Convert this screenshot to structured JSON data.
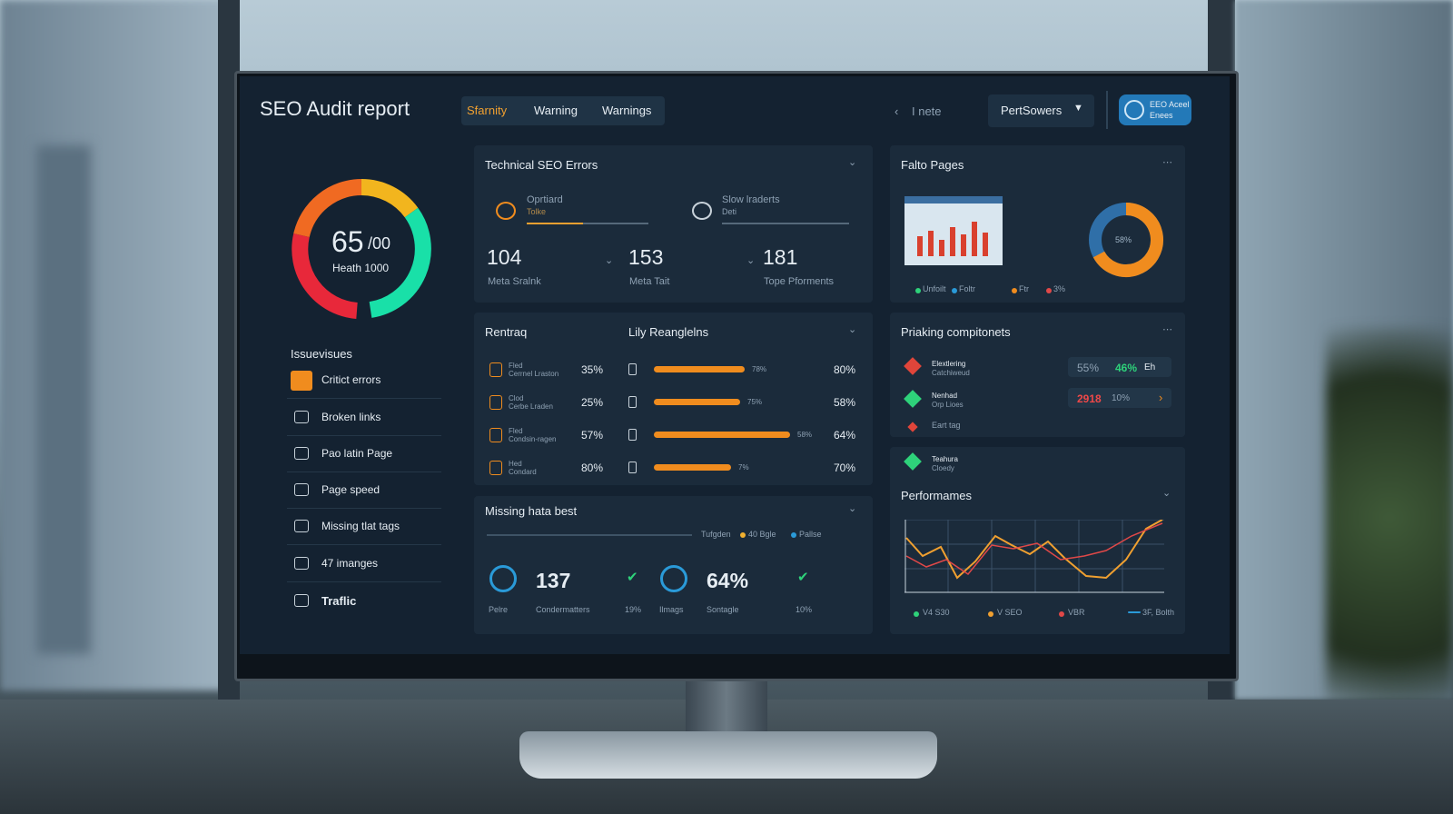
{
  "header": {
    "title": "SEO Audit report",
    "tabs": [
      "Sfarnity",
      "Warning",
      "Warnings"
    ],
    "search": "I nete",
    "dropdown": "PertSowers",
    "badge": [
      "EEO Aceel",
      "Enees"
    ]
  },
  "gauge": {
    "value": "65",
    "suffix": "/00",
    "label": "Heath 1000"
  },
  "sidebar": {
    "title": "Issuevisues",
    "items": [
      "Critict errors",
      "Broken links",
      "Pao latin Page",
      "Page speed",
      "Missing tlat tags",
      "47 imanges",
      "Traflic"
    ]
  },
  "technical": {
    "title": "Technical SEO Errors",
    "tabs": [
      {
        "label": "Oprtiard",
        "sub": "Tolke"
      },
      {
        "label": "Slow lraderts",
        "sub": "Deti"
      }
    ],
    "stats": [
      {
        "value": "104",
        "label": "Meta Sralnk"
      },
      {
        "value": "153",
        "label": "Meta Tait"
      },
      {
        "value": "181",
        "label": "Tope Pforments"
      }
    ]
  },
  "pages": {
    "title": "Falto Pages",
    "donut": "58%",
    "legend": [
      "Unfoilt",
      "Foltr",
      "Ftr",
      "3%"
    ]
  },
  "rank": {
    "title": "Rentraq",
    "title2": "Lily Reanglelns",
    "rows": [
      {
        "name": "Fled",
        "sub": "Cerrnel Lraston",
        "pct": "35%",
        "small": "78%",
        "right": "80%"
      },
      {
        "name": "Clod",
        "sub": "Cerbe Lraden",
        "pct": "25%",
        "small": "75%",
        "right": "58%"
      },
      {
        "name": "Fled",
        "sub": "Condsin-ragen",
        "pct": "57%",
        "small": "58%",
        "right": "64%"
      },
      {
        "name": "Hed",
        "sub": "Condard",
        "pct": "80%",
        "small": "7%",
        "right": "70%"
      }
    ]
  },
  "ranking": {
    "title": "Priaking compitonets",
    "rows": [
      {
        "name": "Elextlering",
        "sub": "Catchiweud",
        "a": "55%",
        "b": "46%",
        "c": "Eh"
      },
      {
        "name": "Nenhad",
        "sub": "Orp Lioes",
        "a": "2918",
        "b": "10%"
      },
      {
        "name": "Eart tag"
      }
    ]
  },
  "performance": {
    "row": {
      "name": "Teahura",
      "sub": "Cloedy"
    },
    "title": "Performames",
    "legend": [
      "V4 S30",
      "V SEO",
      "VBR",
      "3F, Bolth"
    ]
  },
  "missing": {
    "title": "Missing hata best",
    "legend": [
      "Tufgden",
      "40 Bgle",
      "Pallse"
    ],
    "stats": [
      {
        "value": "137",
        "label": "Condermatters",
        "left": "Pelre",
        "pct": "19%"
      },
      {
        "value": "64%",
        "label": "Sontagle",
        "left": "Ilmags",
        "pct": "10%"
      }
    ]
  }
}
